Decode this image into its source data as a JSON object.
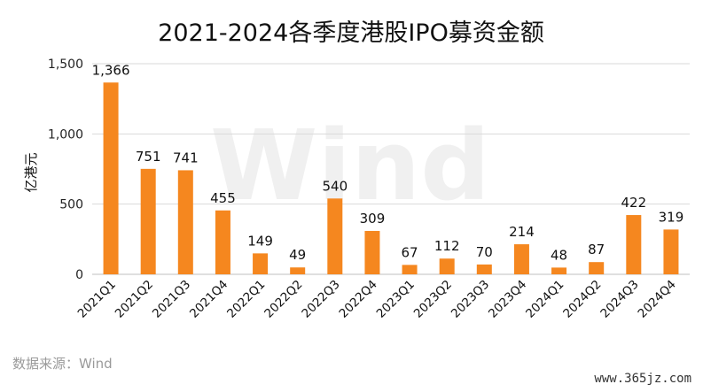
{
  "chart_data": {
    "type": "bar",
    "title": "2021-2024各季度港股IPO募资金额",
    "ylabel": "亿港元",
    "xlabel": "",
    "ylim": [
      0,
      1500
    ],
    "yticks": [
      "0",
      "500",
      "1,000",
      "1,500"
    ],
    "ytick_values": [
      0,
      500,
      1000,
      1500
    ],
    "categories": [
      "2021Q1",
      "2021Q2",
      "2021Q3",
      "2021Q4",
      "2022Q1",
      "2022Q2",
      "2022Q3",
      "2022Q4",
      "2023Q1",
      "2023Q2",
      "2023Q3",
      "2023Q4",
      "2024Q1",
      "2024Q2",
      "2024Q3",
      "2024Q4"
    ],
    "values": [
      1366,
      751,
      741,
      455,
      149,
      49,
      540,
      309,
      67,
      112,
      70,
      214,
      48,
      87,
      422,
      319
    ],
    "value_labels": [
      "1,366",
      "751",
      "741",
      "455",
      "149",
      "49",
      "540",
      "309",
      "67",
      "112",
      "70",
      "214",
      "48",
      "87",
      "422",
      "319"
    ],
    "bar_color": "#F5871F",
    "grid": true,
    "legend": "none"
  },
  "source": "数据来源：Wind",
  "watermark": "Wind",
  "site_mark": "www.365jz.com"
}
